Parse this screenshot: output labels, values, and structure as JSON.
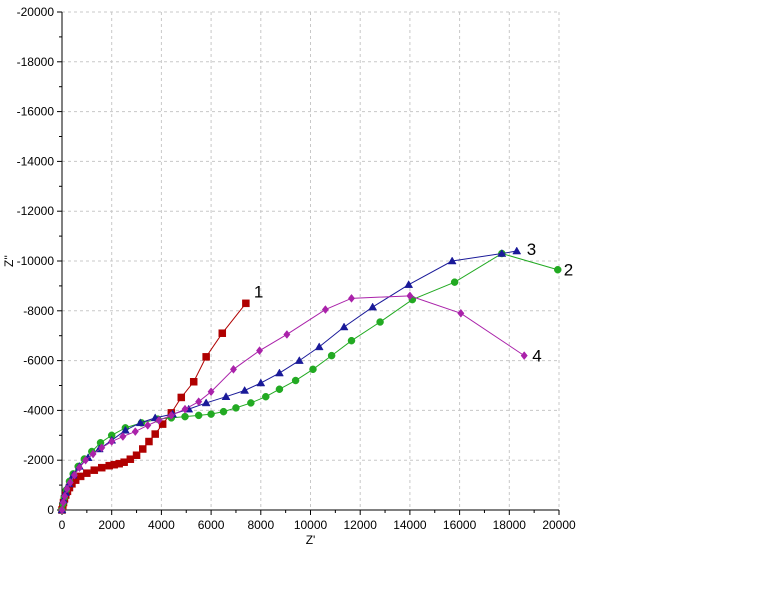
{
  "chart_data": {
    "type": "scatter",
    "title": "",
    "xlabel": "Z'",
    "ylabel": "Z''",
    "xlim": [
      0,
      20000
    ],
    "ylim": [
      0,
      -20000
    ],
    "y_inverted": true,
    "x_ticks": [
      0,
      2000,
      4000,
      6000,
      8000,
      10000,
      12000,
      14000,
      16000,
      18000,
      20000
    ],
    "y_ticks": [
      0,
      -2000,
      -4000,
      -6000,
      -8000,
      -10000,
      -12000,
      -14000,
      -16000,
      -18000,
      -20000
    ],
    "grid": true,
    "series": [
      {
        "name": "1",
        "color": "#b00000",
        "marker": "square",
        "x": [
          0,
          30,
          60,
          100,
          150,
          220,
          300,
          400,
          550,
          750,
          1000,
          1300,
          1600,
          1900,
          2100,
          2300,
          2500,
          2750,
          3000,
          3250,
          3500,
          3750,
          4050,
          4400,
          4800,
          5300,
          5800,
          6450,
          7400
        ],
        "y": [
          0,
          -150,
          -300,
          -450,
          -600,
          -750,
          -900,
          -1050,
          -1200,
          -1350,
          -1480,
          -1600,
          -1700,
          -1780,
          -1820,
          -1860,
          -1920,
          -2040,
          -2200,
          -2450,
          -2750,
          -3050,
          -3450,
          -3900,
          -4520,
          -5150,
          -6150,
          -7100,
          -8300
        ]
      },
      {
        "name": "2",
        "color": "#22aa22",
        "marker": "circle",
        "x": [
          0,
          40,
          90,
          170,
          300,
          450,
          650,
          900,
          1200,
          1550,
          2000,
          2550,
          3200,
          3850,
          4400,
          4950,
          5500,
          6000,
          6500,
          7000,
          7600,
          8200,
          8750,
          9400,
          10100,
          10850,
          11650,
          12800,
          14100,
          15800,
          17700,
          19950
        ],
        "y": [
          0,
          -250,
          -500,
          -800,
          -1150,
          -1450,
          -1750,
          -2050,
          -2350,
          -2700,
          -3000,
          -3300,
          -3500,
          -3650,
          -3700,
          -3750,
          -3800,
          -3850,
          -3950,
          -4100,
          -4300,
          -4550,
          -4850,
          -5200,
          -5650,
          -6200,
          -6800,
          -7550,
          -8450,
          -9150,
          -10300,
          -9650
        ]
      },
      {
        "name": "3",
        "color": "#1a1a99",
        "marker": "triangle",
        "x": [
          0,
          60,
          150,
          280,
          450,
          700,
          1050,
          1500,
          2000,
          2550,
          3150,
          3750,
          4450,
          5100,
          5800,
          6600,
          7350,
          8000,
          8750,
          9550,
          10350,
          11350,
          12500,
          13950,
          15700,
          17700,
          18300
        ],
        "y": [
          0,
          -400,
          -700,
          -1050,
          -1400,
          -1750,
          -2100,
          -2450,
          -2800,
          -3200,
          -3500,
          -3700,
          -3850,
          -4050,
          -4300,
          -4550,
          -4800,
          -5100,
          -5500,
          -6000,
          -6550,
          -7350,
          -8150,
          -9050,
          -10000,
          -10300,
          -10400
        ]
      },
      {
        "name": "4",
        "color": "#aa22aa",
        "marker": "diamond",
        "x": [
          0,
          50,
          110,
          200,
          330,
          500,
          700,
          950,
          1250,
          1600,
          2000,
          2450,
          2950,
          3450,
          3900,
          4400,
          4950,
          5500,
          6000,
          6900,
          7950,
          9050,
          10600,
          11650,
          14000,
          16050,
          18600
        ],
        "y": [
          0,
          -300,
          -550,
          -850,
          -1100,
          -1400,
          -1700,
          -2000,
          -2250,
          -2500,
          -2750,
          -2950,
          -3150,
          -3400,
          -3600,
          -3800,
          -4050,
          -4350,
          -4750,
          -5650,
          -6400,
          -7050,
          -8050,
          -8500,
          -8600,
          -7900,
          -6200
        ]
      }
    ]
  }
}
